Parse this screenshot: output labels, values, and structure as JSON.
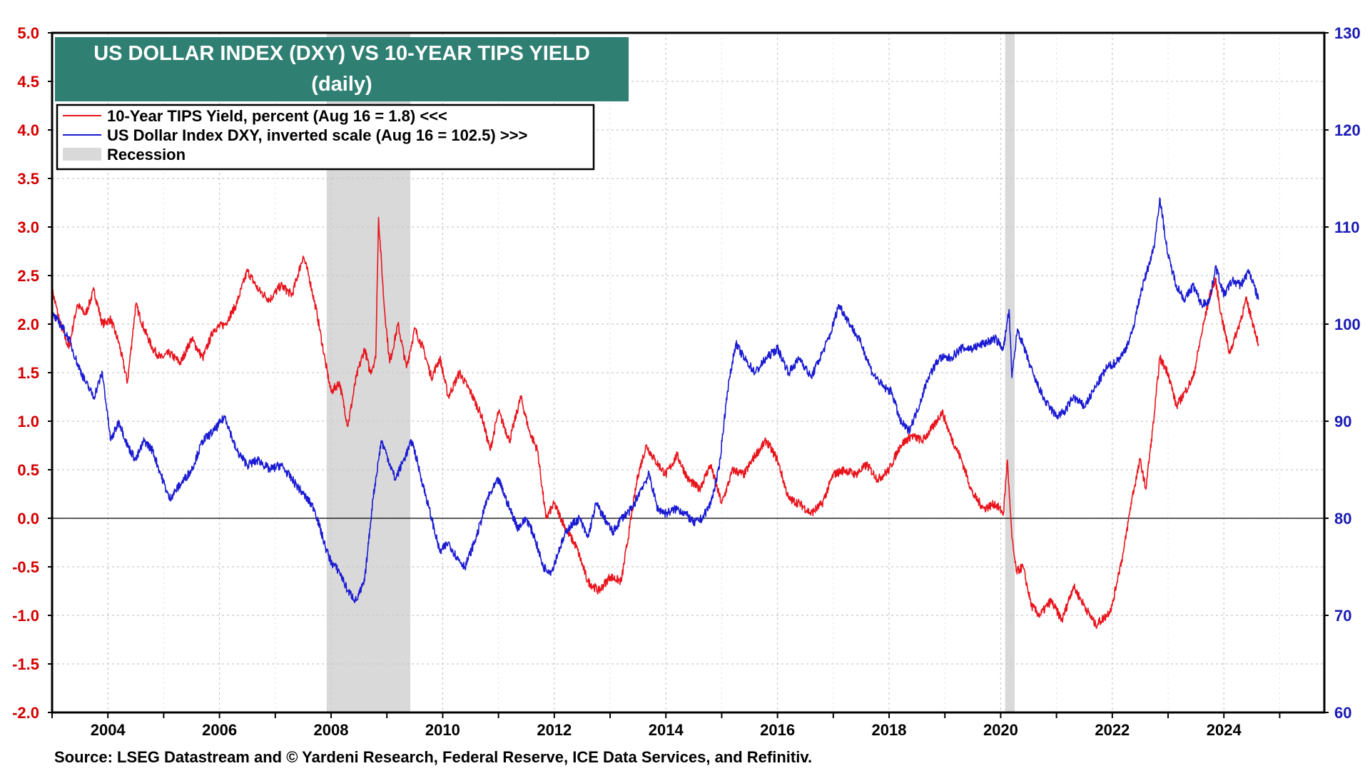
{
  "chart_data": {
    "type": "line",
    "title": "US DOLLAR INDEX (DXY) VS 10-YEAR TIPS YIELD",
    "subtitle": "(daily)",
    "source": "Source: LSEG Datastream and © Yardeni Research, Federal Reserve, ICE Data Services, and Refinitiv.",
    "x_range": [
      2003.0,
      2025.8
    ],
    "x_ticks": [
      2004,
      2006,
      2008,
      2010,
      2012,
      2014,
      2016,
      2018,
      2020,
      2022,
      2024
    ],
    "x_tick_labels": [
      "2004",
      "2006",
      "2008",
      "2010",
      "2012",
      "2014",
      "2016",
      "2018",
      "2020",
      "2022",
      "2024"
    ],
    "left_axis": {
      "range": [
        -2.0,
        5.0
      ],
      "ticks": [
        5.0,
        4.5,
        4.0,
        3.5,
        3.0,
        2.5,
        2.0,
        1.5,
        1.0,
        0.5,
        0.0,
        -0.5,
        -1.0,
        -1.5,
        -2.0
      ],
      "labels": [
        "5.0",
        "4.5",
        "4.0",
        "3.5",
        "3.0",
        "2.5",
        "2.0",
        "1.5",
        "1.0",
        "0.5",
        "0.0",
        "-0.5",
        "-1.0",
        "-1.5",
        "-2.0"
      ],
      "color": "#d40000"
    },
    "right_axis": {
      "range": [
        60,
        130
      ],
      "inverted_note": "",
      "ticks": [
        130,
        120,
        110,
        100,
        90,
        80,
        70,
        60
      ],
      "labels": [
        "130",
        "120",
        "110",
        "100",
        "90",
        "80",
        "70",
        "60"
      ],
      "color": "#1a1ab4"
    },
    "grid": true,
    "legend_position": "top-left",
    "legend": [
      {
        "label": "10-Year TIPS Yield, percent (Aug 16 = 1.8) <<<",
        "kind": "line",
        "color": "#e8141c"
      },
      {
        "label": "US Dollar Index DXY, inverted scale (Aug 16 = 102.5) >>>",
        "kind": "line",
        "color": "#1a1ad2"
      },
      {
        "label": "Recession",
        "kind": "area",
        "color": "#d9d9d9"
      }
    ],
    "recessions": [
      [
        2007.92,
        2009.42
      ],
      [
        2020.08,
        2020.25
      ]
    ],
    "series": [
      {
        "name": "10-Year TIPS Yield",
        "axis": "left",
        "color": "#e8141c",
        "x": [
          2003.0,
          2003.15,
          2003.3,
          2003.45,
          2003.6,
          2003.75,
          2003.9,
          2004.05,
          2004.2,
          2004.35,
          2004.5,
          2004.65,
          2004.8,
          2004.95,
          2005.1,
          2005.3,
          2005.5,
          2005.7,
          2005.9,
          2006.1,
          2006.3,
          2006.5,
          2006.7,
          2006.9,
          2007.1,
          2007.3,
          2007.5,
          2007.6,
          2007.75,
          2007.9,
          2008.0,
          2008.15,
          2008.3,
          2008.45,
          2008.6,
          2008.7,
          2008.8,
          2008.85,
          2008.95,
          2009.05,
          2009.2,
          2009.35,
          2009.5,
          2009.65,
          2009.8,
          2009.95,
          2010.1,
          2010.3,
          2010.5,
          2010.7,
          2010.85,
          2011.0,
          2011.2,
          2011.4,
          2011.55,
          2011.7,
          2011.85,
          2012.0,
          2012.2,
          2012.4,
          2012.6,
          2012.8,
          2013.0,
          2013.2,
          2013.35,
          2013.5,
          2013.65,
          2013.8,
          2014.0,
          2014.2,
          2014.4,
          2014.6,
          2014.8,
          2015.0,
          2015.2,
          2015.4,
          2015.6,
          2015.8,
          2016.0,
          2016.2,
          2016.4,
          2016.6,
          2016.8,
          2017.0,
          2017.2,
          2017.4,
          2017.6,
          2017.8,
          2018.0,
          2018.2,
          2018.4,
          2018.6,
          2018.8,
          2018.95,
          2019.1,
          2019.3,
          2019.5,
          2019.7,
          2019.9,
          2020.05,
          2020.12,
          2020.2,
          2020.28,
          2020.4,
          2020.55,
          2020.7,
          2020.9,
          2021.1,
          2021.3,
          2021.5,
          2021.7,
          2021.9,
          2022.0,
          2022.1,
          2022.2,
          2022.35,
          2022.5,
          2022.6,
          2022.75,
          2022.85,
          2023.0,
          2023.15,
          2023.3,
          2023.45,
          2023.6,
          2023.75,
          2023.85,
          2023.95,
          2024.1,
          2024.25,
          2024.4,
          2024.5,
          2024.62
        ],
        "y": [
          2.35,
          2.0,
          1.75,
          2.2,
          2.1,
          2.35,
          2.0,
          2.05,
          1.8,
          1.4,
          2.2,
          1.95,
          1.75,
          1.65,
          1.7,
          1.6,
          1.85,
          1.65,
          1.95,
          2.0,
          2.2,
          2.55,
          2.35,
          2.25,
          2.4,
          2.3,
          2.7,
          2.5,
          2.1,
          1.6,
          1.3,
          1.4,
          0.95,
          1.45,
          1.75,
          1.5,
          1.65,
          3.1,
          2.2,
          1.6,
          2.0,
          1.55,
          1.95,
          1.75,
          1.45,
          1.65,
          1.25,
          1.5,
          1.3,
          1.05,
          0.7,
          1.1,
          0.8,
          1.25,
          0.9,
          0.7,
          0.0,
          0.15,
          -0.1,
          -0.3,
          -0.65,
          -0.75,
          -0.6,
          -0.65,
          -0.1,
          0.45,
          0.75,
          0.6,
          0.45,
          0.65,
          0.4,
          0.3,
          0.55,
          0.15,
          0.5,
          0.45,
          0.65,
          0.8,
          0.6,
          0.2,
          0.15,
          0.05,
          0.15,
          0.45,
          0.5,
          0.45,
          0.55,
          0.4,
          0.5,
          0.75,
          0.85,
          0.8,
          0.95,
          1.1,
          0.85,
          0.6,
          0.25,
          0.1,
          0.15,
          0.05,
          0.6,
          -0.2,
          -0.55,
          -0.5,
          -0.9,
          -1.0,
          -0.85,
          -1.05,
          -0.7,
          -0.9,
          -1.1,
          -1.0,
          -0.9,
          -0.6,
          -0.35,
          0.2,
          0.6,
          0.3,
          1.05,
          1.65,
          1.5,
          1.15,
          1.3,
          1.45,
          1.9,
          2.3,
          2.45,
          2.1,
          1.7,
          1.95,
          2.25,
          2.05,
          1.8
        ]
      },
      {
        "name": "US Dollar Index DXY (inverted)",
        "axis": "right",
        "color": "#1a1ad2",
        "x": [
          2003.0,
          2003.15,
          2003.3,
          2003.45,
          2003.6,
          2003.75,
          2003.9,
          2004.05,
          2004.2,
          2004.35,
          2004.5,
          2004.65,
          2004.8,
          2004.95,
          2005.1,
          2005.3,
          2005.5,
          2005.7,
          2005.9,
          2006.1,
          2006.3,
          2006.5,
          2006.7,
          2006.9,
          2007.1,
          2007.3,
          2007.5,
          2007.7,
          2007.9,
          2008.0,
          2008.15,
          2008.3,
          2008.45,
          2008.6,
          2008.75,
          2008.9,
          2009.0,
          2009.15,
          2009.3,
          2009.45,
          2009.6,
          2009.8,
          2009.95,
          2010.1,
          2010.25,
          2010.4,
          2010.6,
          2010.8,
          2011.0,
          2011.2,
          2011.35,
          2011.5,
          2011.65,
          2011.8,
          2011.95,
          2012.1,
          2012.25,
          2012.45,
          2012.6,
          2012.75,
          2012.9,
          2013.05,
          2013.2,
          2013.4,
          2013.55,
          2013.7,
          2013.85,
          2014.0,
          2014.2,
          2014.35,
          2014.5,
          2014.65,
          2014.8,
          2014.95,
          2015.1,
          2015.25,
          2015.4,
          2015.6,
          2015.8,
          2016.0,
          2016.2,
          2016.4,
          2016.6,
          2016.8,
          2016.95,
          2017.1,
          2017.3,
          2017.5,
          2017.7,
          2017.9,
          2018.05,
          2018.2,
          2018.35,
          2018.5,
          2018.7,
          2018.9,
          2019.1,
          2019.3,
          2019.5,
          2019.7,
          2019.9,
          2020.05,
          2020.15,
          2020.2,
          2020.3,
          2020.45,
          2020.6,
          2020.8,
          2021.0,
          2021.15,
          2021.3,
          2021.5,
          2021.7,
          2021.9,
          2022.05,
          2022.2,
          2022.35,
          2022.5,
          2022.65,
          2022.75,
          2022.85,
          2023.0,
          2023.15,
          2023.3,
          2023.45,
          2023.6,
          2023.75,
          2023.85,
          2024.0,
          2024.15,
          2024.3,
          2024.45,
          2024.62
        ],
        "y": [
          101,
          100,
          98.5,
          96,
          94,
          92.5,
          95,
          88,
          90,
          87.5,
          86,
          88,
          87,
          84.5,
          82,
          83.5,
          85,
          88,
          89,
          90.5,
          87,
          85.5,
          86,
          85,
          85.5,
          84,
          82.5,
          81,
          77,
          75.5,
          74.5,
          72.5,
          71.5,
          73.5,
          82,
          88,
          86.5,
          84,
          86,
          88,
          84.5,
          80,
          76.5,
          77.5,
          76,
          75,
          78,
          82,
          84,
          81,
          79,
          80,
          78,
          75,
          74.5,
          77,
          79,
          80,
          78,
          81.5,
          80,
          78.5,
          80,
          81,
          83,
          84.5,
          81,
          80.5,
          81,
          80.5,
          79.5,
          80,
          81.5,
          85,
          93,
          98,
          96.5,
          95,
          96.5,
          97.5,
          95,
          96.5,
          94.5,
          97,
          99,
          102,
          100,
          98,
          95,
          93.5,
          93,
          90,
          89,
          91,
          94.5,
          96.5,
          96.5,
          97.5,
          97.5,
          98,
          98.5,
          97.5,
          101.5,
          94.5,
          99.5,
          97,
          94.5,
          92,
          90.5,
          91,
          92.5,
          91.5,
          93.5,
          95.5,
          96,
          97,
          99,
          103,
          106,
          108,
          113,
          107,
          104,
          102.5,
          104,
          102,
          102.5,
          106,
          103,
          104.5,
          104,
          105.5,
          102.5
        ]
      }
    ]
  }
}
